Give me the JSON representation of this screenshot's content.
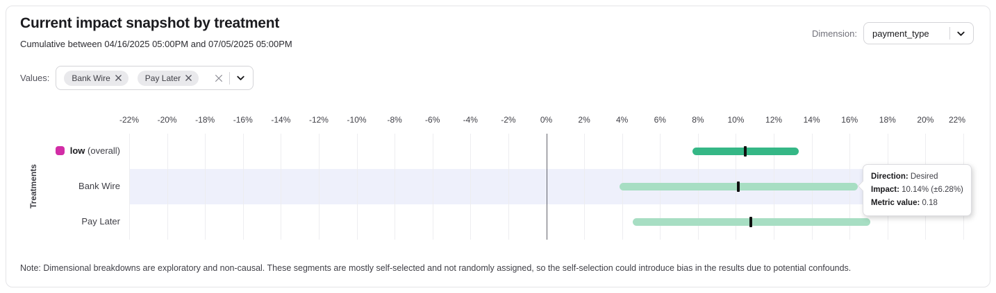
{
  "header": {
    "title": "Current impact snapshot by treatment",
    "subtitle": "Cumulative between 04/16/2025 05:00PM and 07/05/2025 05:00PM",
    "dimension_label": "Dimension:",
    "dimension_value": "payment_type"
  },
  "filters": {
    "label": "Values:",
    "chips": [
      "Bank Wire",
      "Pay Later"
    ]
  },
  "chart_data": {
    "type": "range_bar",
    "title": "Current impact snapshot by treatment",
    "ylabel": "Treatments",
    "xlabel": "",
    "xlim": [
      -22,
      22
    ],
    "x_tick_labels": [
      "-22%",
      "-20%",
      "-18%",
      "-16%",
      "-14%",
      "-12%",
      "-10%",
      "-8%",
      "-6%",
      "-4%",
      "-2%",
      "0%",
      "2%",
      "4%",
      "6%",
      "8%",
      "10%",
      "12%",
      "14%",
      "16%",
      "18%",
      "20%",
      "22%"
    ],
    "grid": true,
    "zero_line": true,
    "marker_color": "#111111",
    "highlight_color": "#EEF0FB",
    "rows": [
      {
        "label": "low",
        "label_note": "(overall)",
        "legend_color": "#D22DA6",
        "bar_color": "#35B786",
        "impact_pct": 10.5,
        "ci_low_pct": 7.7,
        "ci_high_pct": 13.3,
        "highlighted": false
      },
      {
        "label": "Bank Wire",
        "bar_color": "#A7DEC3",
        "impact_pct": 10.14,
        "ci_low_pct": 3.86,
        "ci_high_pct": 16.42,
        "highlighted": true
      },
      {
        "label": "Pay Later",
        "bar_color": "#A7DEC3",
        "impact_pct": 10.8,
        "ci_low_pct": 4.55,
        "ci_high_pct": 17.1,
        "highlighted": false
      }
    ]
  },
  "tooltip": {
    "rows": [
      {
        "label": "Direction:",
        "value": "Desired"
      },
      {
        "label": "Impact:",
        "value": "10.14% (±6.28%)"
      },
      {
        "label": "Metric value:",
        "value": "0.18"
      }
    ]
  },
  "note": "Note: Dimensional breakdowns are exploratory and non-causal. These segments are mostly self-selected and not randomly assigned, so the self-selection could introduce bias in the results due to potential confounds."
}
